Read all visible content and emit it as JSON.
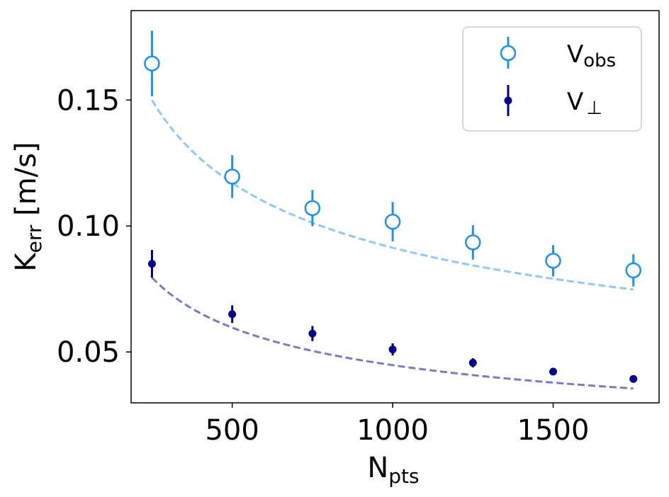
{
  "chart_data": {
    "type": "scatter",
    "title": "",
    "xlabel": {
      "main": "N",
      "sub": "pts"
    },
    "ylabel": {
      "main": "K",
      "sub": "err",
      "suffix": " [m/s]"
    },
    "xlim": [
      185,
      1830
    ],
    "ylim": [
      0.0298,
      0.1855
    ],
    "xticks": [
      500,
      1000,
      1500
    ],
    "xtick_labels": [
      "500",
      "1000",
      "1500"
    ],
    "yticks": [
      0.05,
      0.1,
      0.15
    ],
    "ytick_labels": [
      "0.05",
      "0.10",
      "0.15"
    ],
    "grid": false,
    "legend_position": "top-right",
    "series": [
      {
        "name": "V_obs",
        "legend_main": "V",
        "legend_sub": "obs",
        "marker": "open-circle",
        "color": "#1e90f0",
        "fit_color": "#90c8f8",
        "x": [
          250,
          500,
          750,
          1000,
          1250,
          1500,
          1750
        ],
        "y": [
          0.1645,
          0.1196,
          0.1071,
          0.1017,
          0.0935,
          0.0862,
          0.0824
        ],
        "yerr": [
          0.013,
          0.0085,
          0.0072,
          0.0078,
          0.0068,
          0.0062,
          0.0064
        ],
        "fit": {
          "a": 0.15,
          "exponent": -0.3575
        }
      },
      {
        "name": "V_perp",
        "legend_main": "V",
        "legend_sub": "⊥",
        "marker": "filled-circle",
        "color": "#00008b",
        "fit_color": "#7b7bc0",
        "x": [
          250,
          500,
          750,
          1000,
          1250,
          1500,
          1750
        ],
        "y": [
          0.085,
          0.065,
          0.0573,
          0.051,
          0.0457,
          0.0422,
          0.0393
        ],
        "yerr": [
          0.0055,
          0.0035,
          0.003,
          0.0024,
          0.0018,
          0.0014,
          0.0012
        ],
        "fit": {
          "a": 0.0795,
          "exponent": -0.4145
        }
      }
    ]
  }
}
